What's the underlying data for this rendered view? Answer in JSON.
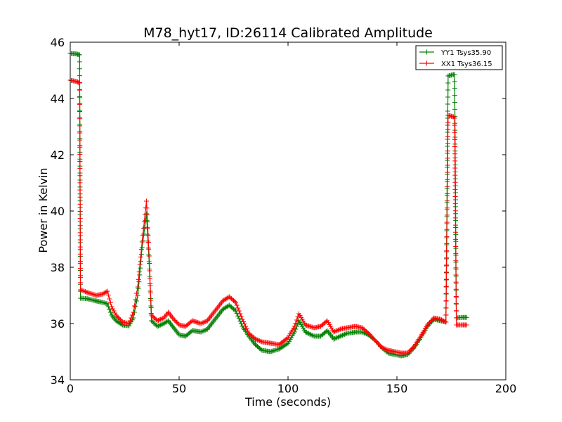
{
  "chart_data": {
    "type": "line",
    "title": "M78_hyt17, ID:26114 Calibrated Amplitude",
    "xlabel": "Time (seconds)",
    "ylabel": "Power in Kelvin",
    "xlim": [
      0,
      200
    ],
    "ylim": [
      34,
      46
    ],
    "xticks": [
      "0",
      "50",
      "100",
      "150",
      "200"
    ],
    "yticks": [
      "34",
      "36",
      "38",
      "40",
      "42",
      "44",
      "46"
    ],
    "xtick_values": [
      0,
      50,
      100,
      150,
      200
    ],
    "ytick_values": [
      34,
      36,
      38,
      40,
      42,
      44,
      46
    ],
    "grid": false,
    "legend_position": "top-right",
    "marker": "+",
    "series": [
      {
        "name": "YY1 Tsys35.90",
        "color": "#008000",
        "points": [
          [
            0,
            45.6
          ],
          [
            3,
            45.58
          ],
          [
            4.3,
            45.55
          ],
          [
            4.7,
            36.9
          ],
          [
            8,
            36.88
          ],
          [
            12,
            36.8
          ],
          [
            15,
            36.75
          ],
          [
            17,
            36.7
          ],
          [
            19,
            36.3
          ],
          [
            21,
            36.1
          ],
          [
            24,
            35.95
          ],
          [
            27,
            35.92
          ],
          [
            29,
            36.2
          ],
          [
            31,
            37.0
          ],
          [
            33,
            38.7
          ],
          [
            35,
            39.9
          ],
          [
            36.2,
            38.2
          ],
          [
            37.3,
            36.1
          ],
          [
            40,
            35.9
          ],
          [
            43,
            36.0
          ],
          [
            45,
            36.1
          ],
          [
            47,
            35.9
          ],
          [
            50,
            35.6
          ],
          [
            53,
            35.55
          ],
          [
            56,
            35.75
          ],
          [
            60,
            35.7
          ],
          [
            63,
            35.8
          ],
          [
            66,
            36.1
          ],
          [
            70,
            36.5
          ],
          [
            73,
            36.65
          ],
          [
            76,
            36.45
          ],
          [
            79,
            35.9
          ],
          [
            82,
            35.55
          ],
          [
            85,
            35.25
          ],
          [
            88,
            35.05
          ],
          [
            92,
            35.0
          ],
          [
            96,
            35.1
          ],
          [
            100,
            35.3
          ],
          [
            103,
            35.7
          ],
          [
            105,
            36.1
          ],
          [
            108,
            35.7
          ],
          [
            112,
            35.55
          ],
          [
            115,
            35.55
          ],
          [
            118,
            35.75
          ],
          [
            121,
            35.45
          ],
          [
            124,
            35.55
          ],
          [
            127,
            35.65
          ],
          [
            131,
            35.7
          ],
          [
            134,
            35.7
          ],
          [
            137,
            35.6
          ],
          [
            140,
            35.4
          ],
          [
            143,
            35.15
          ],
          [
            146,
            34.95
          ],
          [
            149,
            34.9
          ],
          [
            152,
            34.85
          ],
          [
            155,
            34.9
          ],
          [
            158,
            35.15
          ],
          [
            161,
            35.5
          ],
          [
            164,
            35.9
          ],
          [
            167,
            36.15
          ],
          [
            170,
            36.1
          ],
          [
            172.5,
            36.05
          ],
          [
            173.5,
            44.8
          ],
          [
            176,
            44.85
          ],
          [
            176.5,
            44.85
          ],
          [
            177.3,
            36.2
          ],
          [
            180,
            36.22
          ],
          [
            182,
            36.22
          ]
        ]
      },
      {
        "name": "XX1 Tsys36.15",
        "color": "#ff0000",
        "points": [
          [
            0,
            44.65
          ],
          [
            3,
            44.6
          ],
          [
            4.3,
            44.55
          ],
          [
            4.7,
            37.2
          ],
          [
            8,
            37.1
          ],
          [
            12,
            37.0
          ],
          [
            15,
            37.05
          ],
          [
            17,
            37.15
          ],
          [
            19,
            36.6
          ],
          [
            21,
            36.3
          ],
          [
            24,
            36.05
          ],
          [
            27,
            36.0
          ],
          [
            29,
            36.4
          ],
          [
            31,
            37.3
          ],
          [
            33,
            38.9
          ],
          [
            35,
            40.35
          ],
          [
            36.2,
            38.4
          ],
          [
            37.3,
            36.3
          ],
          [
            40,
            36.1
          ],
          [
            43,
            36.2
          ],
          [
            45,
            36.4
          ],
          [
            47,
            36.2
          ],
          [
            50,
            35.95
          ],
          [
            53,
            35.9
          ],
          [
            56,
            36.1
          ],
          [
            60,
            36.0
          ],
          [
            63,
            36.1
          ],
          [
            66,
            36.4
          ],
          [
            70,
            36.8
          ],
          [
            73,
            36.95
          ],
          [
            76,
            36.75
          ],
          [
            79,
            36.15
          ],
          [
            82,
            35.65
          ],
          [
            85,
            35.45
          ],
          [
            88,
            35.35
          ],
          [
            92,
            35.3
          ],
          [
            96,
            35.25
          ],
          [
            100,
            35.5
          ],
          [
            103,
            35.9
          ],
          [
            105,
            36.35
          ],
          [
            108,
            35.95
          ],
          [
            112,
            35.85
          ],
          [
            115,
            35.9
          ],
          [
            118,
            36.1
          ],
          [
            121,
            35.7
          ],
          [
            124,
            35.8
          ],
          [
            127,
            35.85
          ],
          [
            131,
            35.9
          ],
          [
            134,
            35.85
          ],
          [
            137,
            35.65
          ],
          [
            140,
            35.4
          ],
          [
            143,
            35.15
          ],
          [
            146,
            35.05
          ],
          [
            149,
            35.0
          ],
          [
            152,
            34.95
          ],
          [
            155,
            34.95
          ],
          [
            158,
            35.2
          ],
          [
            161,
            35.55
          ],
          [
            164,
            35.95
          ],
          [
            167,
            36.2
          ],
          [
            170,
            36.15
          ],
          [
            172.5,
            36.05
          ],
          [
            173.5,
            43.4
          ],
          [
            176,
            43.35
          ],
          [
            176.5,
            43.3
          ],
          [
            177.3,
            35.95
          ],
          [
            180,
            35.95
          ],
          [
            182,
            35.95
          ]
        ]
      }
    ]
  }
}
